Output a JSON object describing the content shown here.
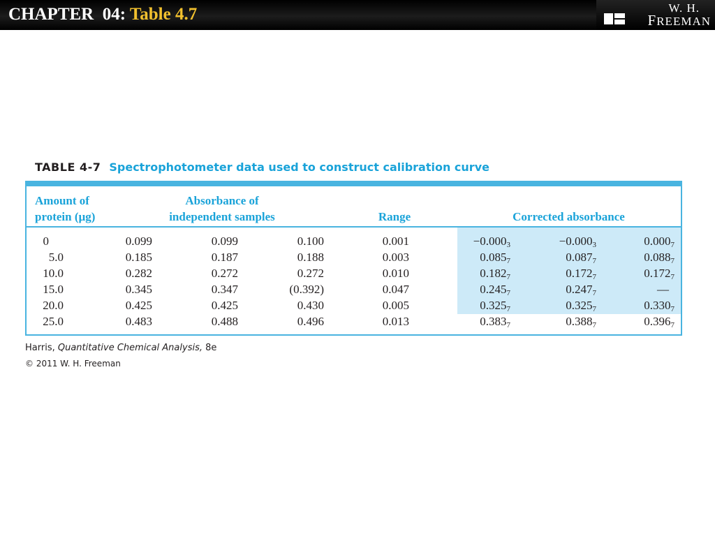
{
  "header": {
    "chapter": "CHAPTER  04:",
    "subtitle": "Table 4.7",
    "publisher_initials": "W. H.",
    "publisher_name_first": "F",
    "publisher_name_rest": "REEMAN"
  },
  "table": {
    "label": "TABLE 4-7",
    "title": "Spectrophotometer data used to construct calibration curve",
    "headers": {
      "amount_line1": "Amount of",
      "amount_line2": "protein (µg)",
      "absorbance_line1": "Absorbance of",
      "absorbance_line2": "independent samples",
      "range": "Range",
      "corrected": "Corrected absorbance"
    },
    "rows": [
      {
        "amount": "0",
        "abs": [
          "0.099",
          "0.099",
          "0.100"
        ],
        "range": "0.001",
        "corr": [
          [
            "−0.000",
            "3"
          ],
          [
            "−0.000",
            "3"
          ],
          [
            "0.000",
            "7"
          ]
        ]
      },
      {
        "amount": "5.0",
        "abs": [
          "0.185",
          "0.187",
          "0.188"
        ],
        "range": "0.003",
        "corr": [
          [
            "0.085",
            "7"
          ],
          [
            "0.087",
            "7"
          ],
          [
            "0.088",
            "7"
          ]
        ]
      },
      {
        "amount": "10.0",
        "abs": [
          "0.282",
          "0.272",
          "0.272"
        ],
        "range": "0.010",
        "corr": [
          [
            "0.182",
            "7"
          ],
          [
            "0.172",
            "7"
          ],
          [
            "0.172",
            "7"
          ]
        ]
      },
      {
        "amount": "15.0",
        "abs": [
          "0.345",
          "0.347",
          "(0.392)"
        ],
        "range": "0.047",
        "corr": [
          [
            "0.245",
            "7"
          ],
          [
            "0.247",
            "7"
          ],
          [
            "—",
            ""
          ]
        ]
      },
      {
        "amount": "20.0",
        "abs": [
          "0.425",
          "0.425",
          "0.430"
        ],
        "range": "0.005",
        "corr": [
          [
            "0.325",
            "7"
          ],
          [
            "0.325",
            "7"
          ],
          [
            "0.330",
            "7"
          ]
        ]
      },
      {
        "amount": "25.0",
        "abs": [
          "0.483",
          "0.488",
          "0.496"
        ],
        "range": "0.013",
        "corr": [
          [
            "0.383",
            "7"
          ],
          [
            "0.388",
            "7"
          ],
          [
            "0.396",
            "7"
          ]
        ]
      }
    ]
  },
  "citation": {
    "author": "Harris, ",
    "book": "Quantitative Chemical Analysis,",
    "edition": " 8e",
    "copyright": "© 2011 W. H. Freeman"
  },
  "colors": {
    "accent_blue": "#1aa3d9",
    "title_yellow": "#f2c12e",
    "shade_blue": "#cdeaf8"
  }
}
